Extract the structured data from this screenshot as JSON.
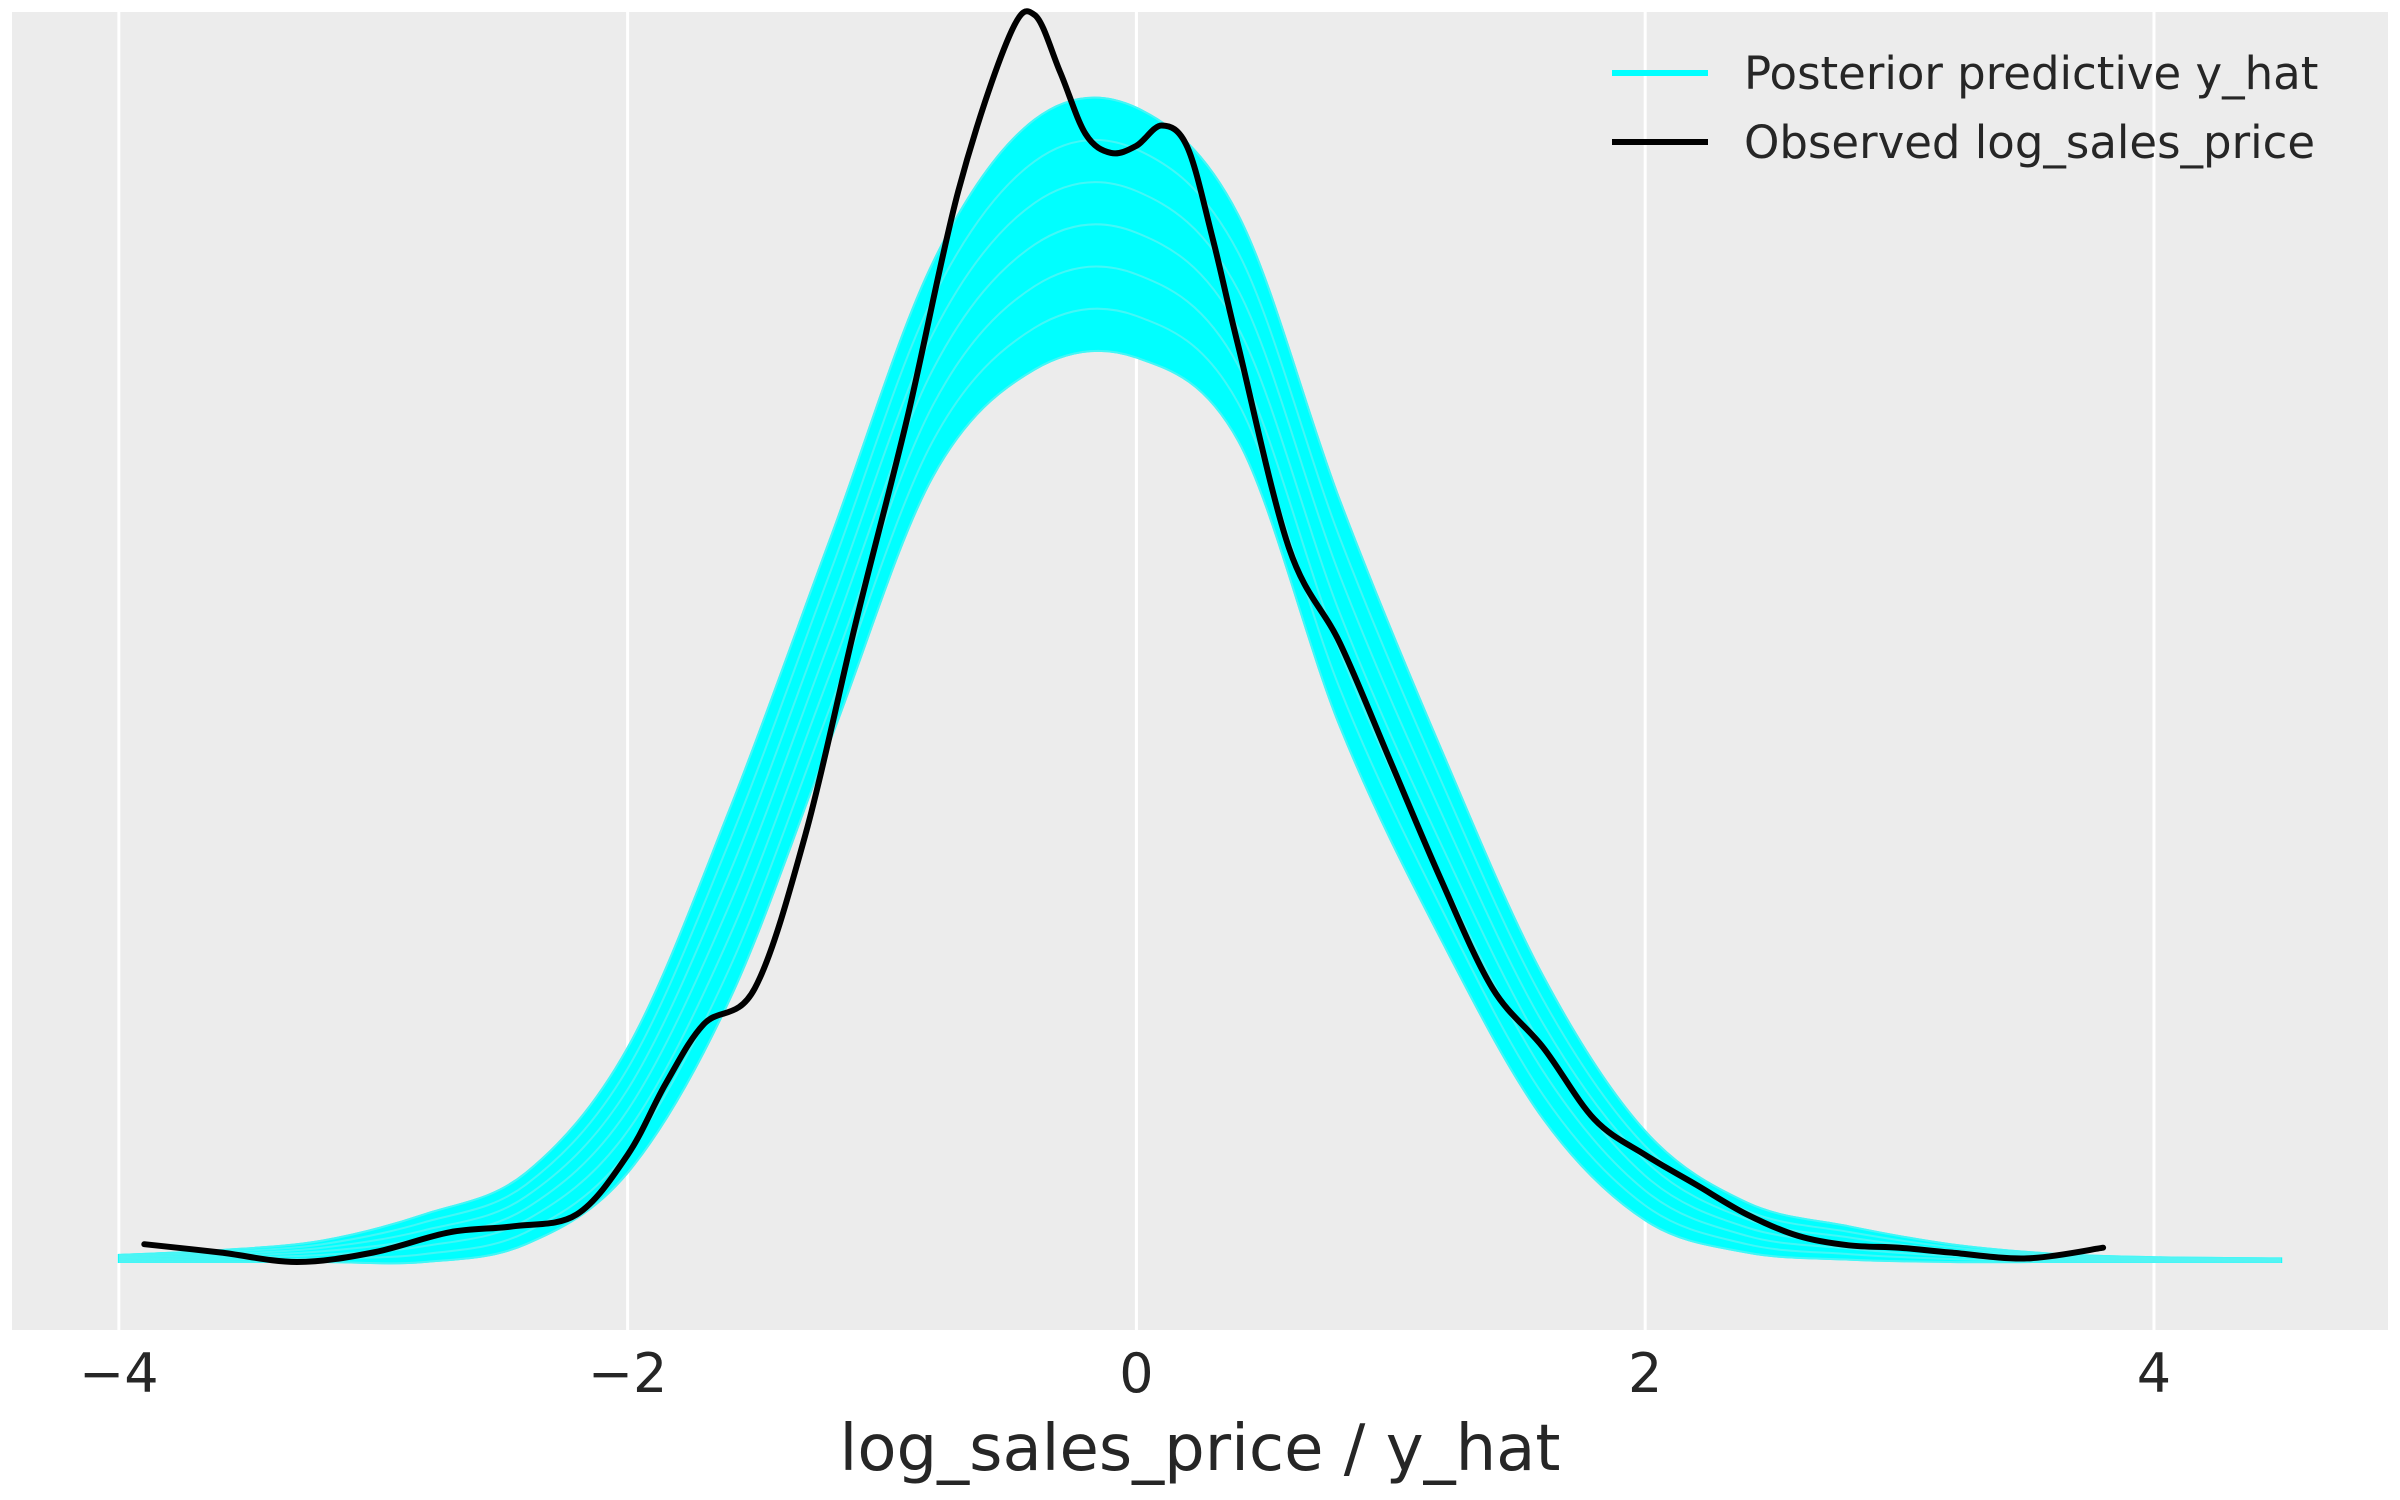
{
  "chart_data": {
    "type": "line",
    "title": "",
    "xlabel": "log_sales_price / y_hat",
    "ylabel": "",
    "xlim": [
      -4.42,
      4.92
    ],
    "ylim": [
      0.0,
      1.0
    ],
    "xticks": [
      -4,
      -2,
      0,
      2,
      4
    ],
    "xtick_labels": [
      "−4",
      "−2",
      "0",
      "2",
      "4"
    ],
    "grid": "vertical",
    "background": "#ececec",
    "legend_position": "top-right",
    "series": [
      {
        "name": "Posterior predictive y_hat",
        "color": "#00ffff",
        "kind": "ensemble",
        "x": [
          -4.0,
          -3.6,
          -3.2,
          -2.8,
          -2.4,
          -2.0,
          -1.6,
          -1.2,
          -0.8,
          -0.4,
          0.0,
          0.4,
          0.8,
          1.2,
          1.6,
          2.0,
          2.4,
          2.8,
          3.2,
          3.6,
          4.0,
          4.5
        ],
        "band_lower": [
          0.0,
          0.0,
          0.0,
          0.0,
          0.015,
          0.075,
          0.22,
          0.44,
          0.66,
          0.75,
          0.76,
          0.69,
          0.45,
          0.27,
          0.12,
          0.035,
          0.008,
          0.002,
          0.0,
          0.0,
          0.0,
          0.0
        ],
        "band_upper": [
          0.006,
          0.01,
          0.018,
          0.04,
          0.075,
          0.18,
          0.38,
          0.61,
          0.84,
          0.96,
          0.97,
          0.88,
          0.64,
          0.43,
          0.24,
          0.11,
          0.05,
          0.03,
          0.015,
          0.007,
          0.004,
          0.003
        ]
      },
      {
        "name": "Observed log_sales_price",
        "color": "#000000",
        "kind": "line",
        "x": [
          -3.9,
          -3.6,
          -3.3,
          -3.0,
          -2.7,
          -2.45,
          -2.2,
          -2.0,
          -1.85,
          -1.7,
          -1.5,
          -1.3,
          -1.1,
          -0.9,
          -0.7,
          -0.5,
          -0.4,
          -0.3,
          -0.2,
          -0.1,
          0.0,
          0.1,
          0.2,
          0.3,
          0.4,
          0.6,
          0.8,
          1.0,
          1.2,
          1.4,
          1.6,
          1.8,
          2.0,
          2.2,
          2.4,
          2.6,
          2.8,
          3.0,
          3.2,
          3.5,
          3.8
        ],
        "y": [
          0.015,
          0.008,
          0.0,
          0.008,
          0.025,
          0.03,
          0.04,
          0.09,
          0.15,
          0.2,
          0.23,
          0.36,
          0.54,
          0.71,
          0.9,
          1.03,
          1.048,
          1.0,
          0.948,
          0.932,
          0.938,
          0.955,
          0.937,
          0.86,
          0.77,
          0.6,
          0.52,
          0.42,
          0.32,
          0.23,
          0.18,
          0.12,
          0.09,
          0.065,
          0.04,
          0.022,
          0.014,
          0.012,
          0.008,
          0.003,
          0.012
        ]
      }
    ]
  },
  "legend": {
    "items": [
      {
        "label": "Posterior predictive y_hat",
        "color": "#00ffff"
      },
      {
        "label": "Observed log_sales_price",
        "color": "#000000"
      }
    ]
  }
}
